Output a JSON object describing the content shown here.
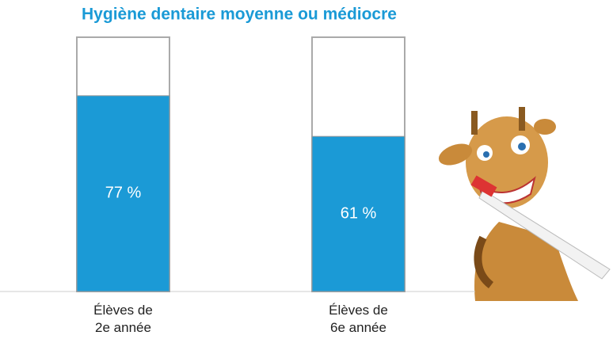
{
  "chart_data": {
    "type": "bar",
    "title": "Hygiène dentaire moyenne ou médiocre",
    "categories": [
      "Élèves de\n2e année",
      "Élèves de\n6e année"
    ],
    "values": [
      77,
      61
    ],
    "value_labels": [
      "77 %",
      "61 %"
    ],
    "color": "#1b9ad6",
    "ylim": [
      0,
      100
    ],
    "grid": false
  }
}
